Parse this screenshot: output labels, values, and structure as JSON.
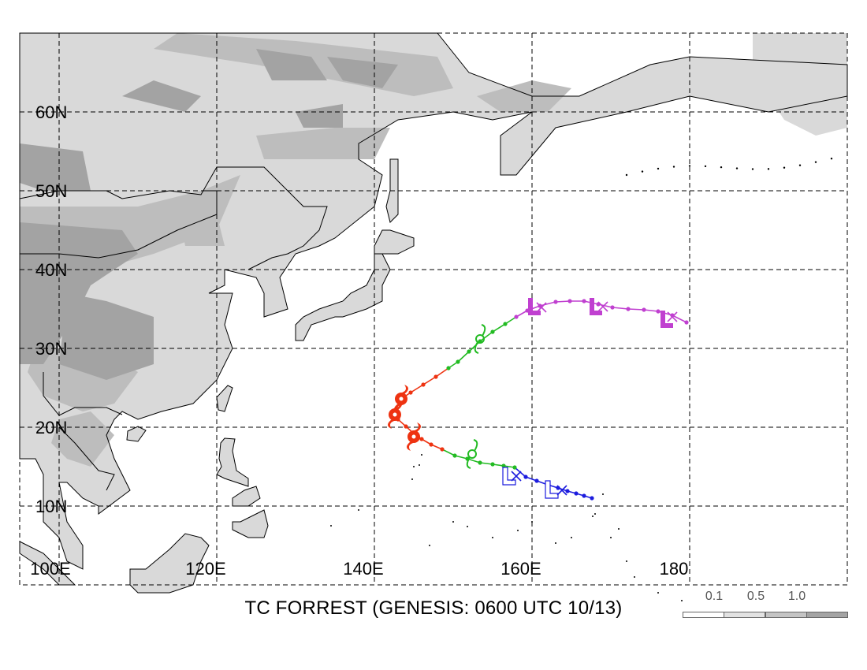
{
  "title": "TC FORREST (GENESIS: 0600 UTC 10/13)",
  "lat_labels": [
    "60N",
    "50N",
    "40N",
    "30N",
    "20N",
    "10N"
  ],
  "lon_labels": [
    "100E",
    "120E",
    "140E",
    "160E",
    "180"
  ],
  "legend": {
    "labels": [
      "0.1",
      "0.5",
      "1.0"
    ],
    "colors": [
      "#ffffff",
      "#e2e2e2",
      "#c4c4c4",
      "#a4a4a4"
    ]
  },
  "colors": {
    "land_light": "#d9d9d9",
    "land_mid": "#bdbdbd",
    "land_dark": "#a3a3a3",
    "grid": "#000000",
    "track_blue": "#1c1cde",
    "track_green": "#22bb22",
    "track_red": "#ee3311",
    "track_magenta": "#c040d0"
  },
  "track": [
    {
      "lon": 167.6,
      "lat": 11.0,
      "stage": "low",
      "color": "blue"
    },
    {
      "lon": 166.6,
      "lat": 11.3,
      "stage": "low",
      "color": "blue"
    },
    {
      "lon": 165.6,
      "lat": 11.6,
      "stage": "low",
      "color": "blue"
    },
    {
      "lon": 164.5,
      "lat": 11.9,
      "stage": "low",
      "color": "blue"
    },
    {
      "lon": 163.3,
      "lat": 12.3,
      "stage": "low",
      "color": "blue"
    },
    {
      "lon": 162.0,
      "lat": 12.7,
      "stage": "low",
      "color": "blue"
    },
    {
      "lon": 160.6,
      "lat": 13.2,
      "stage": "low",
      "color": "blue"
    },
    {
      "lon": 159.2,
      "lat": 13.7,
      "stage": "low",
      "color": "blue"
    },
    {
      "lon": 157.8,
      "lat": 14.9,
      "stage": "storm",
      "color": "green"
    },
    {
      "lon": 156.4,
      "lat": 15.1,
      "stage": "storm",
      "color": "green"
    },
    {
      "lon": 155.0,
      "lat": 15.3,
      "stage": "storm",
      "color": "green"
    },
    {
      "lon": 153.4,
      "lat": 15.5,
      "stage": "storm",
      "color": "green"
    },
    {
      "lon": 151.8,
      "lat": 16.0,
      "stage": "storm",
      "color": "green"
    },
    {
      "lon": 150.2,
      "lat": 16.4,
      "stage": "storm",
      "color": "green"
    },
    {
      "lon": 148.6,
      "lat": 17.2,
      "stage": "typhoon",
      "color": "red"
    },
    {
      "lon": 147.2,
      "lat": 17.8,
      "stage": "typhoon",
      "color": "red"
    },
    {
      "lon": 146.0,
      "lat": 18.5,
      "stage": "typhoon",
      "color": "red"
    },
    {
      "lon": 145.0,
      "lat": 19.2,
      "stage": "typhoon",
      "color": "red"
    },
    {
      "lon": 144.0,
      "lat": 20.1,
      "stage": "typhoon",
      "color": "red"
    },
    {
      "lon": 143.0,
      "lat": 21.0,
      "stage": "typhoon",
      "color": "red"
    },
    {
      "lon": 142.6,
      "lat": 22.0,
      "stage": "typhoon",
      "color": "red"
    },
    {
      "lon": 143.4,
      "lat": 23.6,
      "stage": "typhoon",
      "color": "red"
    },
    {
      "lon": 144.6,
      "lat": 24.4,
      "stage": "typhoon",
      "color": "red"
    },
    {
      "lon": 146.2,
      "lat": 25.4,
      "stage": "typhoon",
      "color": "red"
    },
    {
      "lon": 147.8,
      "lat": 26.4,
      "stage": "typhoon",
      "color": "red"
    },
    {
      "lon": 149.4,
      "lat": 27.5,
      "stage": "storm",
      "color": "green"
    },
    {
      "lon": 150.6,
      "lat": 28.3,
      "stage": "storm",
      "color": "green"
    },
    {
      "lon": 152.0,
      "lat": 29.6,
      "stage": "storm",
      "color": "green"
    },
    {
      "lon": 153.4,
      "lat": 30.9,
      "stage": "storm",
      "color": "green"
    },
    {
      "lon": 155.0,
      "lat": 32.1,
      "stage": "storm",
      "color": "green"
    },
    {
      "lon": 156.6,
      "lat": 33.1,
      "stage": "storm",
      "color": "green"
    },
    {
      "lon": 158.0,
      "lat": 34.0,
      "stage": "extratropical",
      "color": "magenta"
    },
    {
      "lon": 159.4,
      "lat": 34.8,
      "stage": "extratropical",
      "color": "magenta"
    },
    {
      "lon": 161.0,
      "lat": 35.4,
      "stage": "extratropical",
      "color": "magenta"
    },
    {
      "lon": 163.0,
      "lat": 35.9,
      "stage": "extratropical",
      "color": "magenta"
    },
    {
      "lon": 164.8,
      "lat": 36.0,
      "stage": "extratropical",
      "color": "magenta"
    },
    {
      "lon": 166.6,
      "lat": 36.0,
      "stage": "extratropical",
      "color": "magenta"
    },
    {
      "lon": 168.4,
      "lat": 35.6,
      "stage": "extratropical",
      "color": "magenta"
    },
    {
      "lon": 170.2,
      "lat": 35.2,
      "stage": "extratropical",
      "color": "magenta"
    },
    {
      "lon": 172.2,
      "lat": 35.0,
      "stage": "extratropical",
      "color": "magenta"
    },
    {
      "lon": 174.2,
      "lat": 34.9,
      "stage": "extratropical",
      "color": "magenta"
    },
    {
      "lon": 176.0,
      "lat": 34.7,
      "stage": "extratropical",
      "color": "magenta"
    },
    {
      "lon": 177.8,
      "lat": 34.2,
      "stage": "extratropical",
      "color": "magenta"
    },
    {
      "lon": 179.6,
      "lat": 33.3,
      "stage": "extratropical",
      "color": "magenta"
    }
  ],
  "markers": [
    {
      "symbol": "L",
      "lon": 157.2,
      "lat": 13.5,
      "color": "blue",
      "filled": false
    },
    {
      "symbol": "X",
      "lon": 158.0,
      "lat": 13.8,
      "color": "blue"
    },
    {
      "symbol": "L",
      "lon": 162.6,
      "lat": 11.8,
      "color": "blue",
      "filled": false
    },
    {
      "symbol": "X",
      "lon": 163.8,
      "lat": 12.0,
      "color": "blue"
    },
    {
      "symbol": "storm",
      "lon": 152.4,
      "lat": 16.6,
      "color": "green"
    },
    {
      "symbol": "typhoon",
      "lon": 145.0,
      "lat": 18.8,
      "color": "red"
    },
    {
      "symbol": "typhoon",
      "lon": 142.6,
      "lat": 21.6,
      "color": "red"
    },
    {
      "symbol": "typhoon",
      "lon": 143.4,
      "lat": 23.6,
      "color": "red"
    },
    {
      "symbol": "storm",
      "lon": 153.4,
      "lat": 31.2,
      "color": "green"
    },
    {
      "symbol": "L",
      "lon": 160.4,
      "lat": 35.0,
      "color": "magenta",
      "filled": true
    },
    {
      "symbol": "X",
      "lon": 161.2,
      "lat": 35.2,
      "color": "magenta"
    },
    {
      "symbol": "L",
      "lon": 168.2,
      "lat": 35.0,
      "color": "magenta",
      "filled": true
    },
    {
      "symbol": "X",
      "lon": 169.0,
      "lat": 35.3,
      "color": "magenta"
    },
    {
      "symbol": "L",
      "lon": 177.2,
      "lat": 33.4,
      "color": "magenta",
      "filled": true
    },
    {
      "symbol": "X",
      "lon": 177.8,
      "lat": 34.0,
      "color": "magenta"
    }
  ]
}
